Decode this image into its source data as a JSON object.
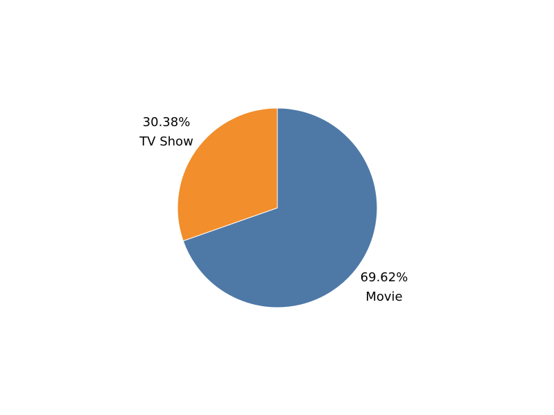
{
  "chart_data": {
    "type": "pie",
    "title": "",
    "start_angle_deg": 90,
    "direction": "clockwise",
    "slices": [
      {
        "label": "Movie",
        "value": 69.62,
        "pct_label": "69.62%",
        "color": "#4e79a7"
      },
      {
        "label": "TV Show",
        "value": 30.38,
        "pct_label": "30.38%",
        "color": "#f28e2b"
      }
    ],
    "legend": "none"
  }
}
